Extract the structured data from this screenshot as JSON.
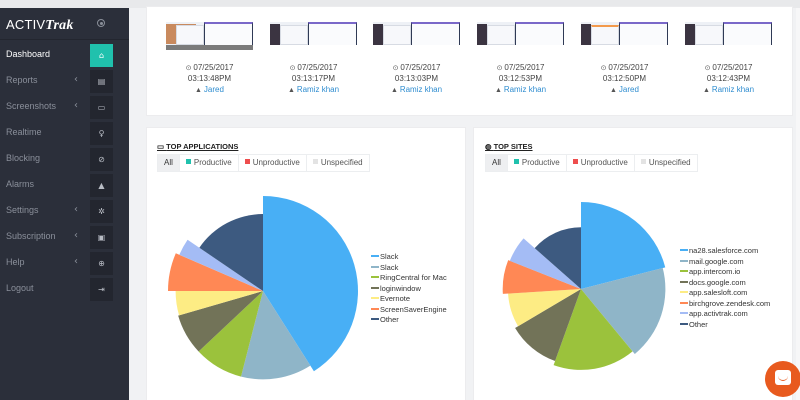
{
  "app": {
    "logo_text": "ACTIV",
    "logo_script": "Trak"
  },
  "sidebar": {
    "items": [
      {
        "label": "Dashboard",
        "icon": "home-icon",
        "glyph": "⌂",
        "chevron": false,
        "active": true
      },
      {
        "label": "Reports",
        "icon": "file-icon",
        "glyph": "▤",
        "chevron": true,
        "active": false
      },
      {
        "label": "Screenshots",
        "icon": "monitor-icon",
        "glyph": "▭",
        "chevron": true,
        "active": false
      },
      {
        "label": "Realtime",
        "icon": "lightbulb-icon",
        "glyph": "♀",
        "chevron": false,
        "active": false
      },
      {
        "label": "Blocking",
        "icon": "ban-icon",
        "glyph": "⊘",
        "chevron": false,
        "active": false
      },
      {
        "label": "Alarms",
        "icon": "bell-icon",
        "glyph": "▲",
        "chevron": false,
        "active": false
      },
      {
        "label": "Settings",
        "icon": "gears-icon",
        "glyph": "✲",
        "chevron": true,
        "active": false
      },
      {
        "label": "Subscription",
        "icon": "money-icon",
        "glyph": "▣",
        "chevron": true,
        "active": false
      },
      {
        "label": "Help",
        "icon": "lifebuoy-icon",
        "glyph": "⊕",
        "chevron": true,
        "active": false
      },
      {
        "label": "Logout",
        "icon": "sign-out-icon",
        "glyph": "⇥",
        "chevron": false,
        "active": false
      }
    ],
    "chevron_glyph": "‹"
  },
  "screenshots": [
    {
      "date": "07/25/2017",
      "time": "03:13:48PM",
      "user": "Jared",
      "style": "photo"
    },
    {
      "date": "07/25/2017",
      "time": "03:13:17PM",
      "user": "Ramiz khan",
      "style": "plain"
    },
    {
      "date": "07/25/2017",
      "time": "03:13:03PM",
      "user": "Ramiz khan",
      "style": "plain"
    },
    {
      "date": "07/25/2017",
      "time": "03:12:53PM",
      "user": "Ramiz khan",
      "style": "plain"
    },
    {
      "date": "07/25/2017",
      "time": "03:12:50PM",
      "user": "Jared",
      "style": "orange"
    },
    {
      "date": "07/25/2017",
      "time": "03:12:43PM",
      "user": "Ramiz khan",
      "style": "plain"
    }
  ],
  "filters": {
    "all": "All",
    "productive": "Productive",
    "unproductive": "Unproductive",
    "unspecified": "Unspecified",
    "colors": {
      "productive": "#20c1ad",
      "unproductive": "#ee4d4d",
      "unspecified": "#e3e3e3"
    }
  },
  "chart_data": [
    {
      "type": "pie",
      "title": "TOP APPLICATIONS",
      "legend_position": "right",
      "series": [
        {
          "name": "Slack",
          "share": 41,
          "radius": 1.0,
          "color": "#48aff5"
        },
        {
          "name": "Slack",
          "share": 13,
          "radius": 0.93,
          "color": "#8fb5c8"
        },
        {
          "name": "RingCentral for Mac",
          "share": 9,
          "radius": 0.93,
          "color": "#9bc23c"
        },
        {
          "name": "loginwindow",
          "share": 7.5,
          "radius": 0.93,
          "color": "#727358"
        },
        {
          "name": "Evernote",
          "share": 4.5,
          "radius": 0.92,
          "color": "#fdec84"
        },
        {
          "name": "ScreenSaverEngine",
          "share": 6.5,
          "radius": 1.0,
          "color": "#ff8855"
        },
        {
          "name": null,
          "share": 3,
          "radius": 0.96,
          "color": "#a4bcf5"
        },
        {
          "name": "Other",
          "share": 15.5,
          "radius": 0.81,
          "color": "#3d5a80"
        }
      ]
    },
    {
      "type": "pie",
      "title": "TOP SITES",
      "legend_position": "right",
      "series": [
        {
          "name": "na28.salesforce.com",
          "share": 21,
          "radius": 1.0,
          "color": "#48aff5"
        },
        {
          "name": "mail.google.com",
          "share": 18,
          "radius": 0.97,
          "color": "#8fb5c8"
        },
        {
          "name": "app.intercom.io",
          "share": 16.5,
          "radius": 0.93,
          "color": "#9bc23c"
        },
        {
          "name": "docs.google.com",
          "share": 11,
          "radius": 0.88,
          "color": "#727358"
        },
        {
          "name": "app.salesloft.com",
          "share": 7.5,
          "radius": 0.84,
          "color": "#fdec84"
        },
        {
          "name": "birchgrove.zendesk.com",
          "share": 7,
          "radius": 0.9,
          "color": "#ff8855"
        },
        {
          "name": "app.activtrak.com",
          "share": 5.5,
          "radius": 0.88,
          "color": "#a4bcf5"
        },
        {
          "name": "Other",
          "share": 13.5,
          "radius": 0.71,
          "color": "#3d5a80"
        }
      ]
    }
  ]
}
